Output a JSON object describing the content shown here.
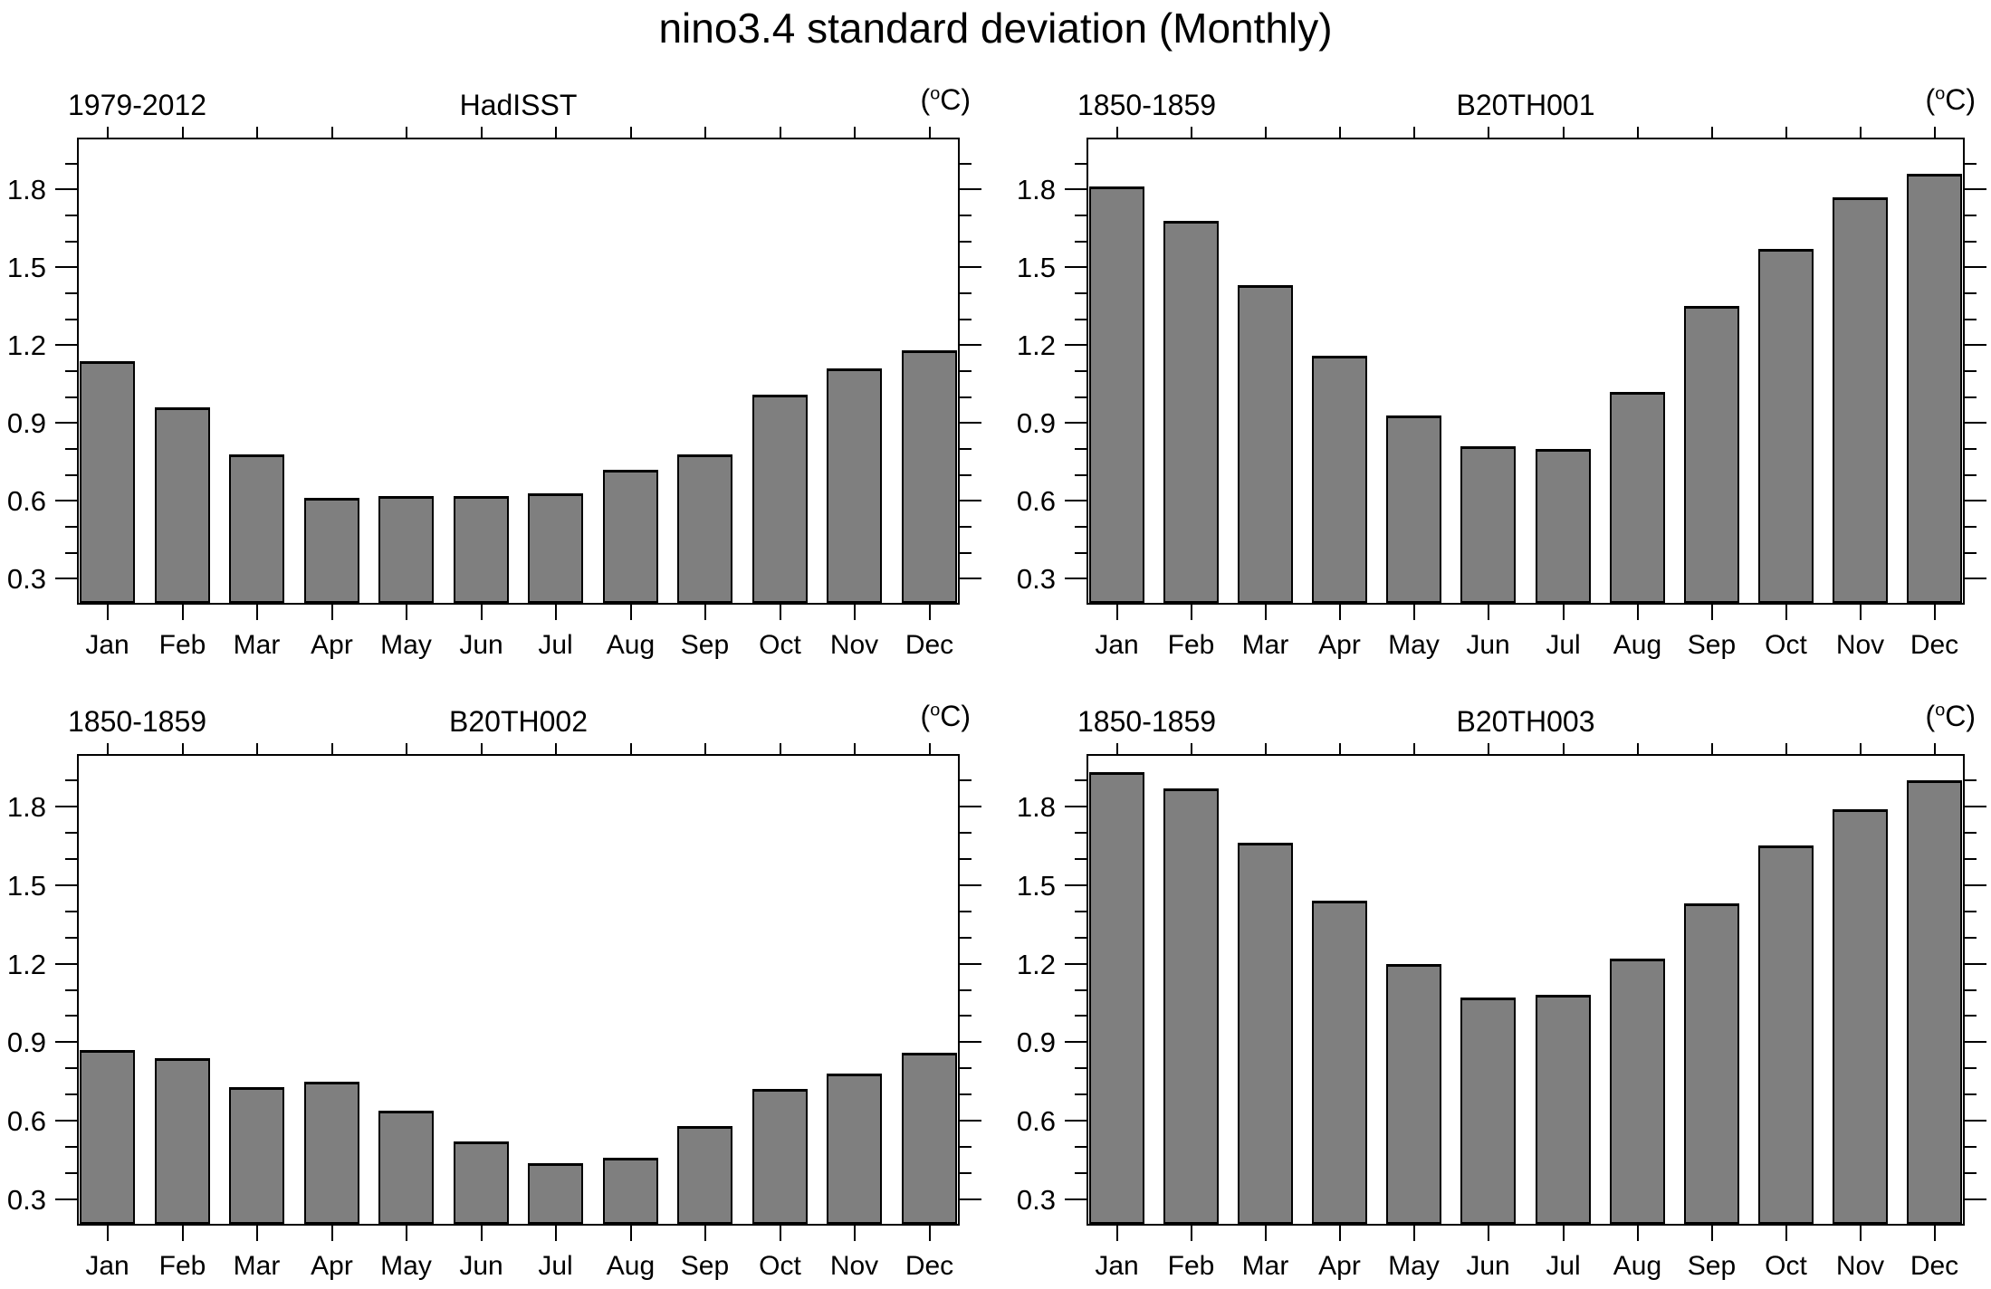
{
  "title": "nino3.4 standard deviation (Monthly)",
  "unit_parts": {
    "open": "(",
    "degree": "o",
    "close": "C)"
  },
  "months": [
    "Jan",
    "Feb",
    "Mar",
    "Apr",
    "May",
    "Jun",
    "Jul",
    "Aug",
    "Sep",
    "Oct",
    "Nov",
    "Dec"
  ],
  "y_axis": {
    "tick_labels": [
      "0.3",
      "0.6",
      "0.9",
      "1.2",
      "1.5",
      "1.8"
    ],
    "tick_values": [
      0.3,
      0.6,
      0.9,
      1.2,
      1.5,
      1.8
    ],
    "min": 0.2,
    "max": 2.0,
    "minor_step": 0.1
  },
  "colors": {
    "bar_fill": "#7f7f7f",
    "bar_edge": "#000000",
    "axis": "#000000",
    "background": "#ffffff",
    "text": "#000000"
  },
  "chart_data": [
    {
      "type": "bar",
      "period": "1979-2012",
      "name": "HadISST",
      "unit": "°C",
      "categories": [
        "Jan",
        "Feb",
        "Mar",
        "Apr",
        "May",
        "Jun",
        "Jul",
        "Aug",
        "Sep",
        "Oct",
        "Nov",
        "Dec"
      ],
      "values": [
        1.14,
        0.96,
        0.78,
        0.61,
        0.62,
        0.62,
        0.63,
        0.72,
        0.78,
        1.01,
        1.11,
        1.18
      ],
      "ylim": [
        0.2,
        2.0
      ],
      "grid": false,
      "legend": "none"
    },
    {
      "type": "bar",
      "period": "1850-1859",
      "name": "B20TH001",
      "unit": "°C",
      "categories": [
        "Jan",
        "Feb",
        "Mar",
        "Apr",
        "May",
        "Jun",
        "Jul",
        "Aug",
        "Sep",
        "Oct",
        "Nov",
        "Dec"
      ],
      "values": [
        1.81,
        1.68,
        1.43,
        1.16,
        0.93,
        0.81,
        0.8,
        1.02,
        1.35,
        1.57,
        1.77,
        1.86
      ],
      "ylim": [
        0.2,
        2.0
      ],
      "grid": false,
      "legend": "none"
    },
    {
      "type": "bar",
      "period": "1850-1859",
      "name": "B20TH002",
      "unit": "°C",
      "categories": [
        "Jan",
        "Feb",
        "Mar",
        "Apr",
        "May",
        "Jun",
        "Jul",
        "Aug",
        "Sep",
        "Oct",
        "Nov",
        "Dec"
      ],
      "values": [
        0.87,
        0.84,
        0.73,
        0.75,
        0.64,
        0.52,
        0.44,
        0.46,
        0.58,
        0.72,
        0.78,
        0.86
      ],
      "ylim": [
        0.2,
        2.0
      ],
      "grid": false,
      "legend": "none"
    },
    {
      "type": "bar",
      "period": "1850-1859",
      "name": "B20TH003",
      "unit": "°C",
      "categories": [
        "Jan",
        "Feb",
        "Mar",
        "Apr",
        "May",
        "Jun",
        "Jul",
        "Aug",
        "Sep",
        "Oct",
        "Nov",
        "Dec"
      ],
      "values": [
        1.93,
        1.87,
        1.66,
        1.44,
        1.2,
        1.07,
        1.08,
        1.22,
        1.43,
        1.65,
        1.79,
        1.9
      ],
      "ylim": [
        0.2,
        2.0
      ],
      "grid": false,
      "legend": "none"
    }
  ]
}
